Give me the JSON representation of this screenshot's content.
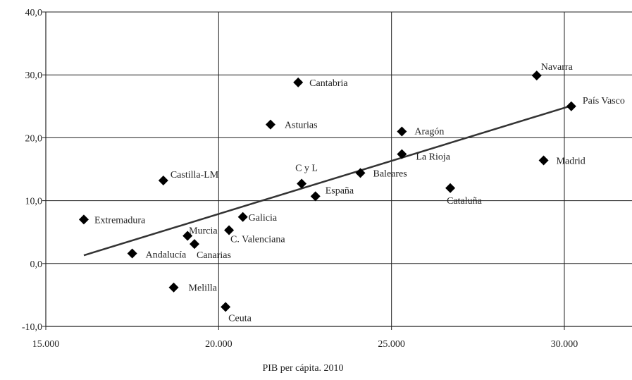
{
  "chart_data": {
    "type": "scatter",
    "title": "",
    "xlabel": "PIB per cápita. 2010",
    "ylabel": "",
    "xlim": [
      15000,
      32000
    ],
    "ylim": [
      -10,
      40
    ],
    "xticks": [
      15000,
      20000,
      25000,
      30000
    ],
    "xtick_labels": [
      "15.000",
      "20.000",
      "25.000",
      "30.000"
    ],
    "yticks": [
      -10,
      0,
      10,
      20,
      30,
      40
    ],
    "ytick_labels": [
      "-10,0",
      "0,0",
      "10,0",
      "20,0",
      "30,0",
      "40,0"
    ],
    "grid": true,
    "legend": "none",
    "marker": "diamond",
    "marker_color": "#000000",
    "points": [
      {
        "label": "Navarra",
        "x": 29200,
        "y": 29.9
      },
      {
        "label": "País Vasco",
        "x": 30200,
        "y": 25.0
      },
      {
        "label": "Cantabria",
        "x": 22300,
        "y": 28.8
      },
      {
        "label": "Asturias",
        "x": 21500,
        "y": 22.1
      },
      {
        "label": "Aragón",
        "x": 25300,
        "y": 21.0
      },
      {
        "label": "La Rioja",
        "x": 25300,
        "y": 17.4
      },
      {
        "label": "Madrid",
        "x": 29400,
        "y": 16.4
      },
      {
        "label": "Castilla-LM",
        "x": 18400,
        "y": 13.2
      },
      {
        "label": "C y L",
        "x": 22400,
        "y": 12.7
      },
      {
        "label": "Baleares",
        "x": 24100,
        "y": 14.4
      },
      {
        "label": "España",
        "x": 22800,
        "y": 10.7
      },
      {
        "label": "Cataluña",
        "x": 26700,
        "y": 12.0
      },
      {
        "label": "Extremadura",
        "x": 16100,
        "y": 7.0
      },
      {
        "label": "Galicia",
        "x": 20700,
        "y": 7.4
      },
      {
        "label": "Murcia",
        "x": 19100,
        "y": 4.4
      },
      {
        "label": "C. Valenciana",
        "x": 20300,
        "y": 5.3
      },
      {
        "label": "Canarias",
        "x": 19300,
        "y": 3.1
      },
      {
        "label": "Andalucía",
        "x": 17500,
        "y": 1.6
      },
      {
        "label": "Melilla",
        "x": 18700,
        "y": -3.8
      },
      {
        "label": "Ceuta",
        "x": 20200,
        "y": -6.9
      }
    ],
    "trendline": {
      "type": "linear",
      "x": [
        16100,
        30200
      ],
      "y": [
        1.3,
        25.1
      ],
      "color": "#333333"
    }
  }
}
